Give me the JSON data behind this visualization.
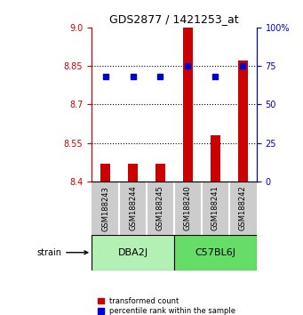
{
  "title": "GDS2877 / 1421253_at",
  "samples": [
    "GSM188243",
    "GSM188244",
    "GSM188245",
    "GSM188240",
    "GSM188241",
    "GSM188242"
  ],
  "groups": [
    {
      "name": "DBA2J",
      "indices": [
        0,
        1,
        2
      ],
      "color": "#b3f0b3"
    },
    {
      "name": "C57BL6J",
      "indices": [
        3,
        4,
        5
      ],
      "color": "#66dd66"
    }
  ],
  "bar_bottom": 8.4,
  "bar_values": [
    8.47,
    8.47,
    8.47,
    9.0,
    8.58,
    8.87
  ],
  "percentile_values": [
    68,
    68,
    68,
    75,
    68,
    75
  ],
  "ylim_left": [
    8.4,
    9.0
  ],
  "ylim_right": [
    0,
    100
  ],
  "yticks_left": [
    8.4,
    8.55,
    8.7,
    8.85,
    9.0
  ],
  "yticks_right": [
    0,
    25,
    50,
    75,
    100
  ],
  "ytick_labels_right": [
    "0",
    "25",
    "50",
    "75",
    "100%"
  ],
  "hlines": [
    8.55,
    8.7,
    8.85
  ],
  "bar_color": "#cc0000",
  "dot_color": "#0000cc",
  "axis_left_color": "#cc0000",
  "axis_right_color": "#0000cc",
  "legend_bar_label": "transformed count",
  "legend_dot_label": "percentile rank within the sample",
  "strain_label": "strain",
  "sample_box_color": "#cccccc"
}
